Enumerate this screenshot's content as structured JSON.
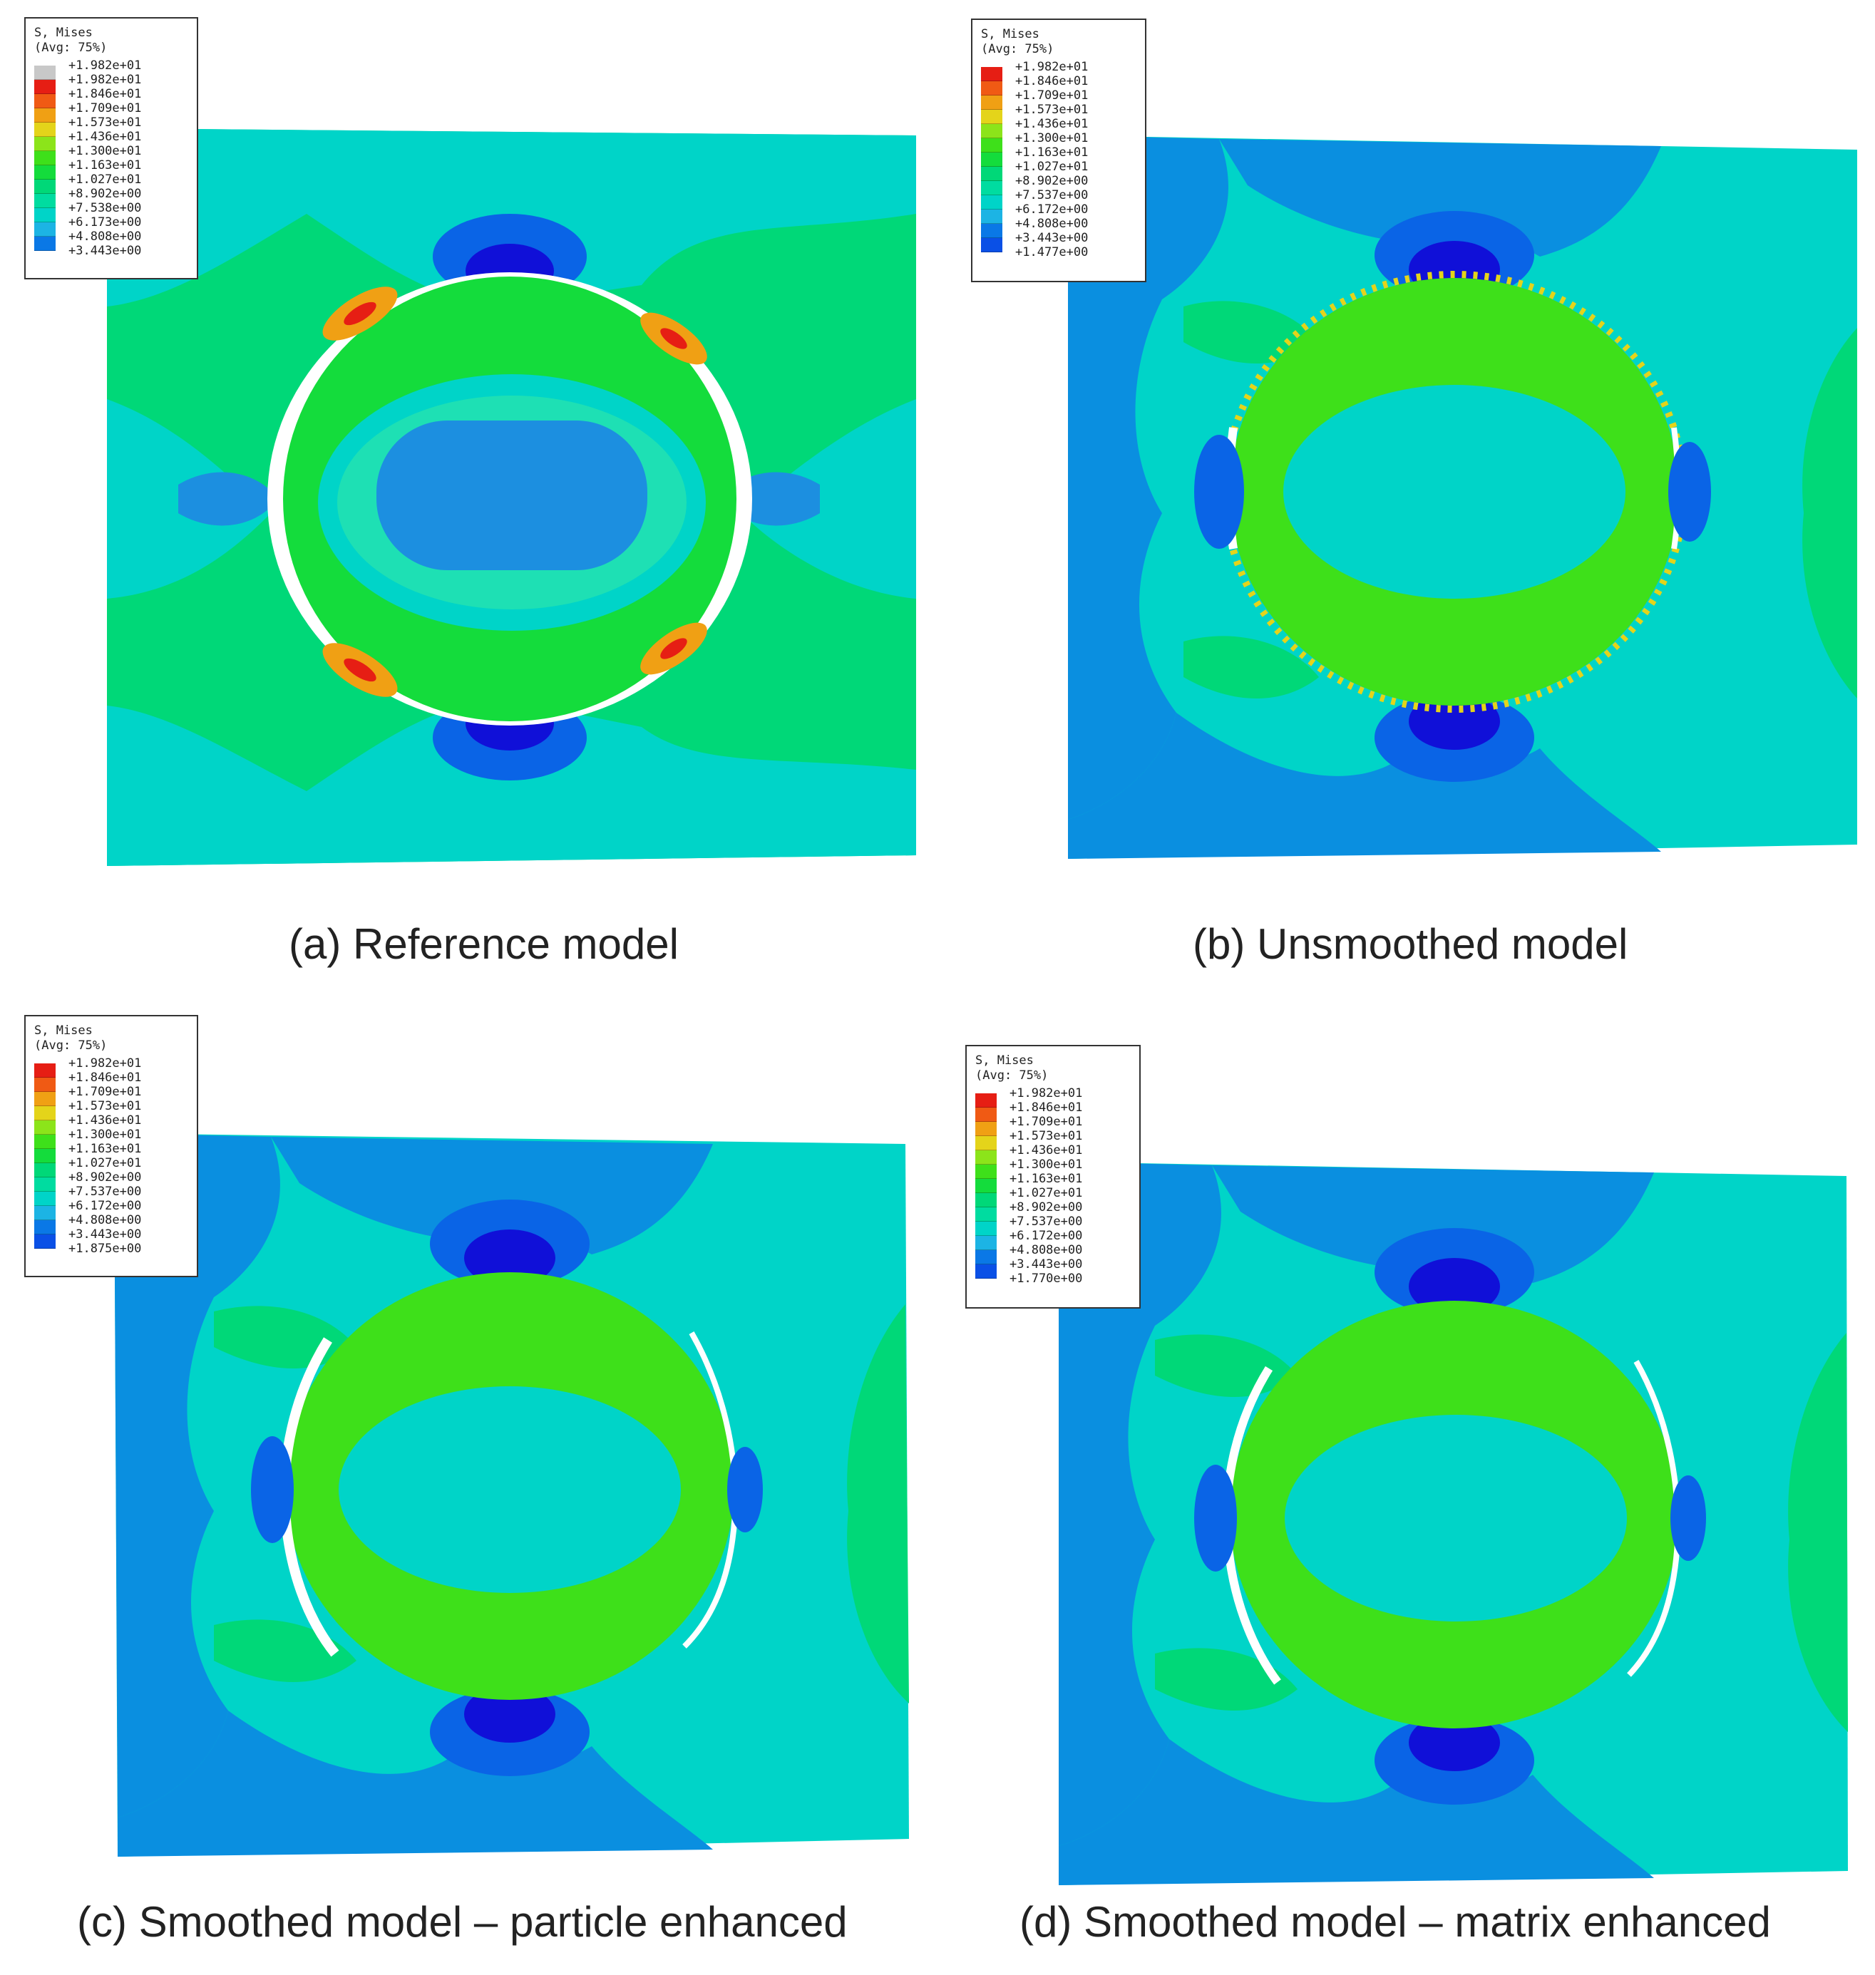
{
  "colors": {
    "blue_dark": "#1010d8",
    "blue": "#0a64e6",
    "blue_mid": "#1c8fe0",
    "cyan": "#00d4c8",
    "cyan_light": "#1ee0b4",
    "green": "#00d878",
    "green_mid": "#14dc3c",
    "green_bright": "#3ee01a",
    "yellow_green": "#a8e41a",
    "orange": "#f0a014",
    "red": "#e61e14",
    "grey": "#c8c8c8"
  },
  "legend_colors": [
    "#c8c8c8",
    "#e61e14",
    "#f05a14",
    "#f0a014",
    "#e4d41a",
    "#8ce41a",
    "#3ee01a",
    "#14dc3c",
    "#00d878",
    "#00dca0",
    "#00d4c8",
    "#1cb4e4",
    "#0a78e6",
    "#0a50e6",
    "#1010d8"
  ],
  "legend_colors_14": [
    "#e61e14",
    "#f05a14",
    "#f0a014",
    "#e4d41a",
    "#8ce41a",
    "#3ee01a",
    "#14dc3c",
    "#00d878",
    "#00dca0",
    "#00d4c8",
    "#1cb4e4",
    "#0a78e6",
    "#0a50e6",
    "#1010d8"
  ],
  "panels": [
    {
      "caption": "(a) Reference model",
      "legend": {
        "title": "S, Mises",
        "subtitle": "(Avg: 75%)",
        "values": [
          "+1.982e+01",
          "+1.982e+01",
          "+1.846e+01",
          "+1.709e+01",
          "+1.573e+01",
          "+1.436e+01",
          "+1.300e+01",
          "+1.163e+01",
          "+1.027e+01",
          "+8.902e+00",
          "+7.538e+00",
          "+6.173e+00",
          "+4.808e+00",
          "+3.443e+00"
        ]
      }
    },
    {
      "caption": "(b) Unsmoothed model",
      "legend": {
        "title": "S, Mises",
        "subtitle": "(Avg: 75%)",
        "values": [
          "+1.982e+01",
          "+1.846e+01",
          "+1.709e+01",
          "+1.573e+01",
          "+1.436e+01",
          "+1.300e+01",
          "+1.163e+01",
          "+1.027e+01",
          "+8.902e+00",
          "+7.537e+00",
          "+6.172e+00",
          "+4.808e+00",
          "+3.443e+00",
          "+1.477e+00"
        ]
      }
    },
    {
      "caption": "(c) Smoothed model – particle enhanced",
      "legend": {
        "title": "S, Mises",
        "subtitle": "(Avg: 75%)",
        "values": [
          "+1.982e+01",
          "+1.846e+01",
          "+1.709e+01",
          "+1.573e+01",
          "+1.436e+01",
          "+1.300e+01",
          "+1.163e+01",
          "+1.027e+01",
          "+8.902e+00",
          "+7.537e+00",
          "+6.172e+00",
          "+4.808e+00",
          "+3.443e+00",
          "+1.875e+00"
        ]
      }
    },
    {
      "caption": "(d) Smoothed model – matrix enhanced",
      "legend": {
        "title": "S, Mises",
        "subtitle": "(Avg: 75%)",
        "values": [
          "+1.982e+01",
          "+1.846e+01",
          "+1.709e+01",
          "+1.573e+01",
          "+1.436e+01",
          "+1.300e+01",
          "+1.163e+01",
          "+1.027e+01",
          "+8.902e+00",
          "+7.537e+00",
          "+6.172e+00",
          "+4.808e+00",
          "+3.443e+00",
          "+1.770e+00"
        ]
      }
    }
  ]
}
